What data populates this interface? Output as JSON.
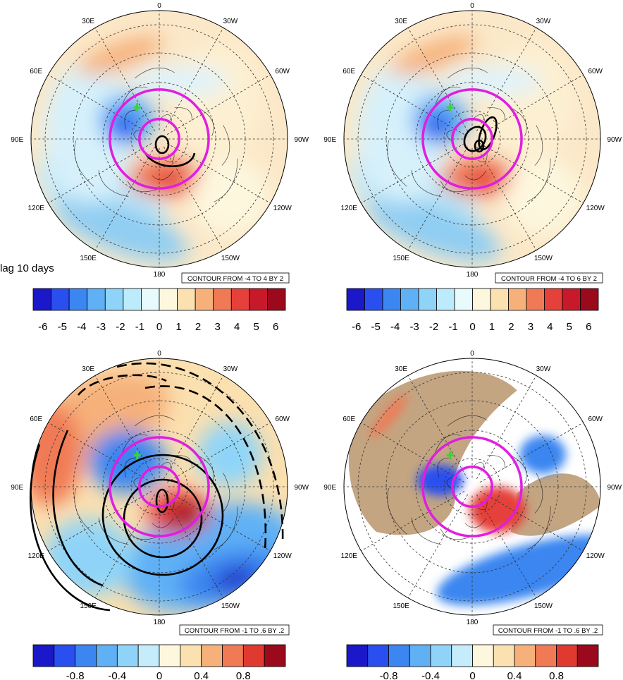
{
  "figure": {
    "lag_label": "lag 10 days",
    "colors": {
      "scale13": [
        "#1a18c8",
        "#2a4ff0",
        "#3b86f0",
        "#5fb0f5",
        "#8fd4f8",
        "#bcebfb",
        "#e8fbfc",
        "#fdf7de",
        "#fbe0b0",
        "#f6b07a",
        "#f07a55",
        "#e5403a",
        "#c8192a",
        "#9a0a1c"
      ],
      "scale11": [
        "#1a18c8",
        "#2a4ff0",
        "#3b86f0",
        "#5fb0f5",
        "#8fd4f8",
        "#c5ecfb",
        "#fdf7de",
        "#fbe0b0",
        "#f6b07a",
        "#f07a55",
        "#e03a30",
        "#9a0a1c"
      ],
      "land": "#c3a582",
      "magenta": "#e01ee0",
      "green_marker": "#3ad23a"
    }
  },
  "chart_data": [
    {
      "type": "heatmap",
      "projection": "north polar stereographic",
      "lon_labels": [
        "0",
        "30W",
        "60W",
        "90W",
        "120W",
        "150W",
        "180",
        "150E",
        "120E",
        "90E",
        "60E",
        "30E"
      ],
      "contour_note": "CONTOUR FROM -4 TO 4 BY 2",
      "colorbar_ticks": [
        "-6",
        "-5",
        "-4",
        "-3",
        "-2",
        "-1",
        "0",
        "1",
        "2",
        "3",
        "4",
        "5",
        "6"
      ],
      "colorbar_range": [
        -6.5,
        6.5
      ]
    },
    {
      "type": "heatmap",
      "projection": "north polar stereographic",
      "lon_labels": [
        "0",
        "30W",
        "60W",
        "90W",
        "120W",
        "150W",
        "180",
        "150E",
        "120E",
        "90E",
        "60E",
        "30E"
      ],
      "contour_note": "CONTOUR FROM -4 TO 6 BY 2",
      "colorbar_ticks": [
        "-6",
        "-5",
        "-4",
        "-3",
        "-2",
        "-1",
        "0",
        "1",
        "2",
        "3",
        "4",
        "5",
        "6"
      ],
      "colorbar_range": [
        -6.5,
        6.5
      ]
    },
    {
      "type": "heatmap",
      "projection": "north polar stereographic",
      "lon_labels": [
        "0",
        "30W",
        "60W",
        "90W",
        "120W",
        "150W",
        "180",
        "150E",
        "120E",
        "90E",
        "60E",
        "30E"
      ],
      "contour_note": "CONTOUR FROM -1 TO .6 BY .2",
      "colorbar_ticks": [
        "-0.8",
        "-0.4",
        "0",
        "0.4",
        "0.8"
      ],
      "colorbar_range": [
        -1.2,
        1.2
      ]
    },
    {
      "type": "heatmap",
      "projection": "north polar stereographic",
      "lon_labels": [
        "0",
        "30W",
        "60W",
        "90W",
        "120W",
        "150W",
        "180",
        "150E",
        "120E",
        "90E",
        "60E",
        "30E"
      ],
      "contour_note": "CONTOUR FROM -1 TO .6 BY .2",
      "colorbar_ticks": [
        "-0.8",
        "-0.4",
        "0",
        "0.4",
        "0.8"
      ],
      "colorbar_range": [
        -1.2,
        1.2
      ]
    }
  ]
}
